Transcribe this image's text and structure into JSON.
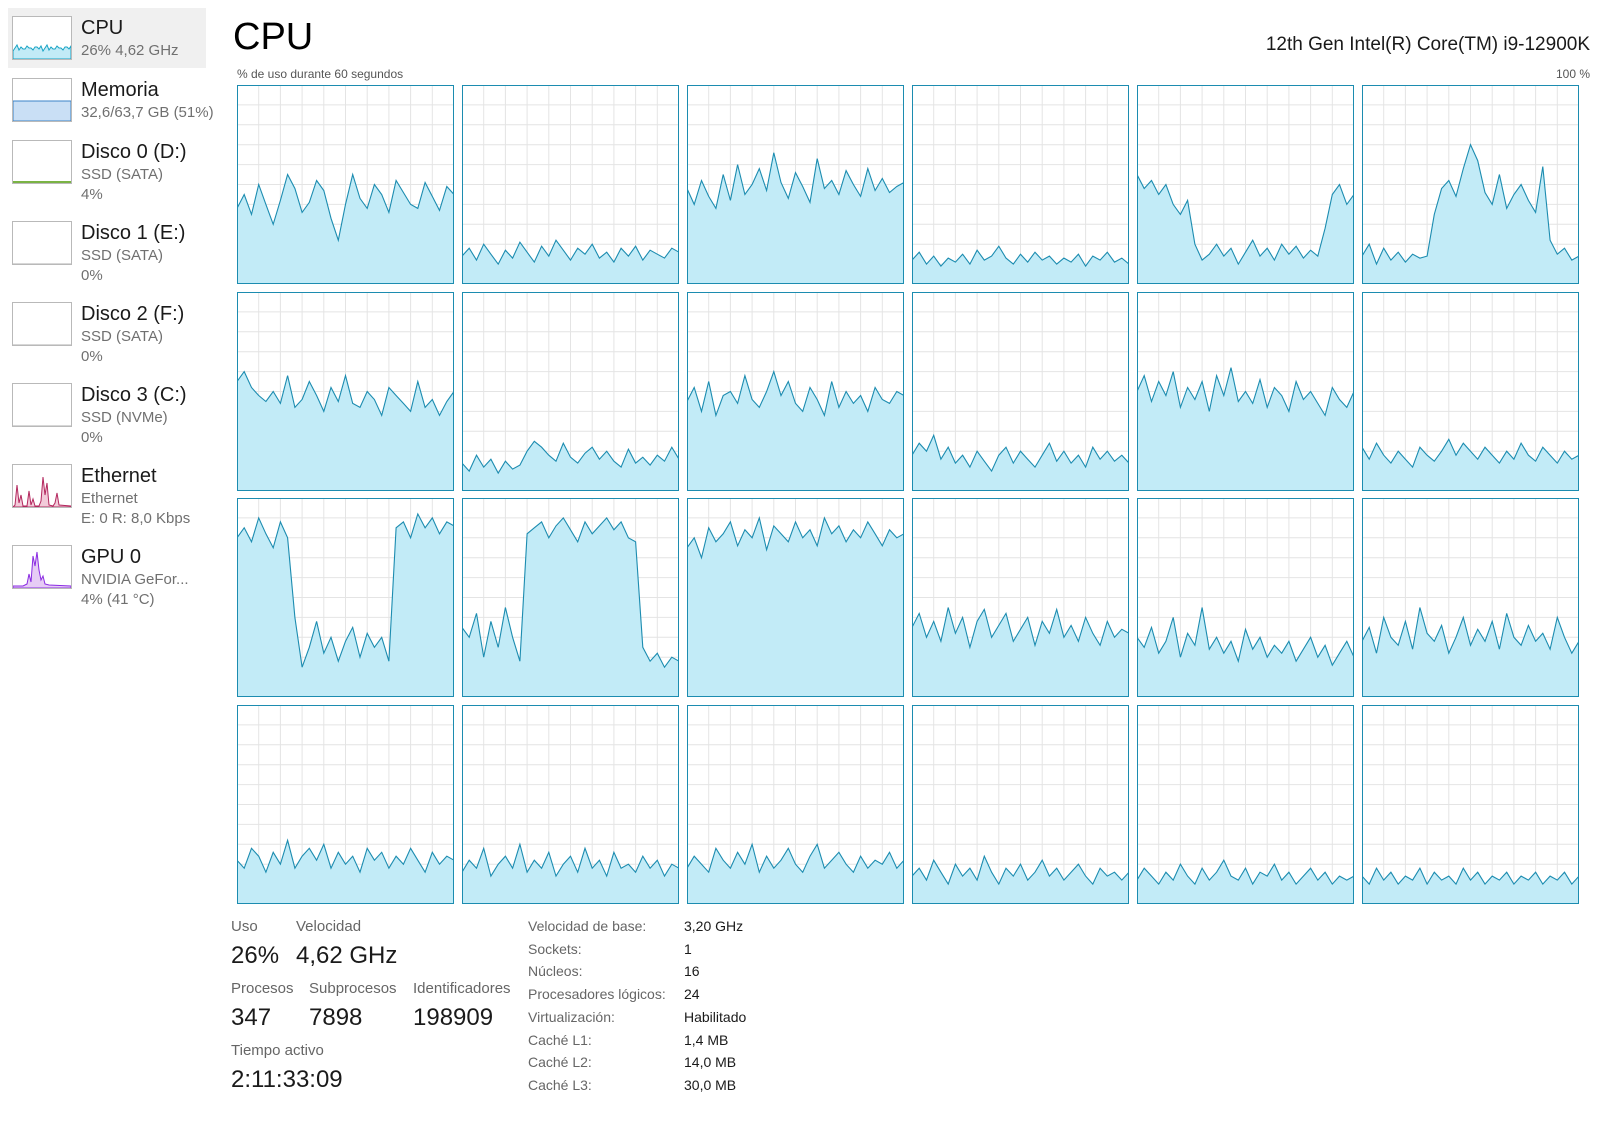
{
  "sidebar": {
    "items": [
      {
        "title": "CPU",
        "sub1": "26% 4,62 GHz",
        "sub2": "",
        "icon": "cpu-graph-icon",
        "color": "#17a3c4"
      },
      {
        "title": "Memoria",
        "sub1": "32,6/63,7 GB (51%)",
        "sub2": "",
        "icon": "memory-graph-icon",
        "color": "#3a83c8"
      },
      {
        "title": "Disco 0 (D:)",
        "sub1": "SSD (SATA)",
        "sub2": "4%",
        "icon": "disk-graph-icon",
        "color": "#4e9a06"
      },
      {
        "title": "Disco 1 (E:)",
        "sub1": "SSD (SATA)",
        "sub2": "0%",
        "icon": "disk-graph-icon",
        "color": "#4e9a06"
      },
      {
        "title": "Disco 2 (F:)",
        "sub1": "SSD (SATA)",
        "sub2": "0%",
        "icon": "disk-graph-icon",
        "color": "#4e9a06"
      },
      {
        "title": "Disco 3 (C:)",
        "sub1": "SSD (NVMe)",
        "sub2": "0%",
        "icon": "disk-graph-icon",
        "color": "#4e9a06"
      },
      {
        "title": "Ethernet",
        "sub1": "Ethernet",
        "sub2": "E: 0 R: 8,0 Kbps",
        "icon": "network-graph-icon",
        "color": "#b3285e"
      },
      {
        "title": "GPU 0",
        "sub1": "NVIDIA GeFor...",
        "sub2": "4% (41 °C)",
        "icon": "gpu-graph-icon",
        "color": "#8a2be2"
      }
    ]
  },
  "header": {
    "title": "CPU",
    "model": "12th Gen Intel(R) Core(TM) i9-12900K",
    "caption": "% de uso durante 60 segundos",
    "max": "100 %"
  },
  "colors": {
    "accent": "#1c8cb0",
    "fill": "#c2ebf7",
    "border": "#1c8cb0",
    "grid": "#e4e4e4"
  },
  "stats": {
    "uso_label": "Uso",
    "uso": "26%",
    "velocidad_label": "Velocidad",
    "velocidad": "4,62 GHz",
    "procesos_label": "Procesos",
    "procesos": "347",
    "subprocesos_label": "Subprocesos",
    "subprocesos": "7898",
    "identificadores_label": "Identificadores",
    "identificadores": "198909",
    "tiempo_label": "Tiempo activo",
    "tiempo": "2:11:33:09"
  },
  "specs": [
    {
      "label": "Velocidad de base:",
      "value": "3,20 GHz"
    },
    {
      "label": "Sockets:",
      "value": "1"
    },
    {
      "label": "Núcleos:",
      "value": "16"
    },
    {
      "label": "Procesadores lógicos:",
      "value": "24"
    },
    {
      "label": "Virtualización:",
      "value": "Habilitado"
    },
    {
      "label": "Caché L1:",
      "value": "1,4 MB"
    },
    {
      "label": "Caché L2:",
      "value": "14,0 MB"
    },
    {
      "label": "Caché L3:",
      "value": "30,0 MB"
    }
  ],
  "chart_data": {
    "type": "area",
    "rows": 4,
    "cols": 6,
    "ylim": [
      0,
      100
    ],
    "x_window_seconds": 60,
    "cores": [
      {
        "usage": [
          38,
          45,
          35,
          50,
          40,
          30,
          42,
          55,
          48,
          36,
          41,
          52,
          47,
          33,
          22,
          40,
          55,
          43,
          38,
          50,
          45,
          36,
          52,
          46,
          40,
          38,
          51,
          44,
          37,
          49,
          45
        ]
      },
      {
        "usage": [
          14,
          18,
          12,
          20,
          15,
          10,
          17,
          13,
          21,
          16,
          11,
          19,
          14,
          22,
          17,
          12,
          18,
          15,
          20,
          13,
          16,
          11,
          18,
          14,
          19,
          12,
          17,
          15,
          13,
          18,
          16
        ]
      },
      {
        "usage": [
          48,
          40,
          52,
          44,
          38,
          55,
          42,
          60,
          45,
          50,
          58,
          47,
          66,
          51,
          43,
          56,
          49,
          41,
          63,
          48,
          52,
          45,
          57,
          50,
          44,
          58,
          47,
          53,
          46,
          49,
          51
        ]
      },
      {
        "usage": [
          12,
          16,
          10,
          14,
          9,
          13,
          11,
          15,
          10,
          17,
          12,
          14,
          19,
          13,
          10,
          15,
          11,
          16,
          12,
          14,
          10,
          13,
          11,
          15,
          9,
          14,
          12,
          16,
          11,
          13,
          10
        ]
      },
      {
        "usage": [
          55,
          48,
          52,
          45,
          50,
          40,
          35,
          42,
          20,
          12,
          15,
          20,
          14,
          18,
          10,
          16,
          22,
          14,
          18,
          12,
          20,
          15,
          19,
          13,
          17,
          14,
          28,
          45,
          50,
          40,
          45
        ]
      },
      {
        "usage": [
          14,
          20,
          10,
          18,
          12,
          16,
          11,
          15,
          13,
          14,
          35,
          48,
          52,
          44,
          58,
          70,
          62,
          46,
          40,
          55,
          38,
          45,
          50,
          42,
          36,
          59,
          22,
          15,
          18,
          12,
          14
        ]
      },
      {
        "usage": [
          55,
          60,
          52,
          48,
          45,
          50,
          44,
          58,
          42,
          46,
          55,
          48,
          40,
          52,
          45,
          58,
          44,
          42,
          50,
          46,
          38,
          52,
          48,
          44,
          40,
          55,
          42,
          46,
          38,
          45,
          50
        ]
      },
      {
        "usage": [
          14,
          10,
          18,
          12,
          16,
          9,
          15,
          11,
          13,
          20,
          25,
          22,
          18,
          15,
          24,
          17,
          14,
          19,
          22,
          16,
          20,
          15,
          12,
          21,
          14,
          17,
          13,
          18,
          15,
          22,
          16
        ]
      },
      {
        "usage": [
          45,
          52,
          40,
          55,
          38,
          48,
          50,
          44,
          58,
          46,
          42,
          50,
          60,
          48,
          55,
          44,
          40,
          52,
          46,
          38,
          55,
          42,
          50,
          44,
          48,
          40,
          52,
          46,
          44,
          50,
          48
        ]
      },
      {
        "usage": [
          18,
          24,
          20,
          28,
          16,
          22,
          14,
          18,
          12,
          20,
          15,
          10,
          18,
          22,
          14,
          20,
          16,
          12,
          18,
          24,
          15,
          20,
          14,
          18,
          12,
          22,
          16,
          20,
          15,
          18,
          14
        ]
      },
      {
        "usage": [
          50,
          58,
          45,
          55,
          48,
          60,
          42,
          52,
          46,
          55,
          40,
          58,
          48,
          62,
          45,
          50,
          44,
          56,
          42,
          52,
          48,
          40,
          55,
          46,
          50,
          44,
          38,
          52,
          46,
          42,
          50
        ]
      },
      {
        "usage": [
          22,
          16,
          24,
          18,
          14,
          20,
          16,
          12,
          22,
          18,
          15,
          20,
          26,
          18,
          24,
          20,
          16,
          22,
          18,
          14,
          20,
          16,
          24,
          18,
          15,
          22,
          18,
          14,
          20,
          16,
          18
        ]
      },
      {
        "usage": [
          80,
          85,
          78,
          90,
          82,
          75,
          88,
          80,
          40,
          15,
          25,
          38,
          22,
          30,
          18,
          28,
          35,
          20,
          32,
          25,
          30,
          18,
          85,
          88,
          80,
          92,
          85,
          90,
          82,
          88,
          86
        ]
      },
      {
        "usage": [
          35,
          30,
          42,
          20,
          38,
          25,
          45,
          30,
          18,
          82,
          85,
          88,
          80,
          86,
          90,
          84,
          78,
          88,
          82,
          86,
          90,
          84,
          88,
          80,
          78,
          25,
          18,
          22,
          15,
          20,
          18
        ]
      },
      {
        "usage": [
          75,
          80,
          70,
          85,
          78,
          82,
          88,
          76,
          84,
          80,
          90,
          74,
          86,
          82,
          78,
          88,
          80,
          84,
          76,
          90,
          82,
          86,
          78,
          84,
          80,
          88,
          82,
          76,
          84,
          80,
          82
        ]
      },
      {
        "usage": [
          35,
          42,
          30,
          38,
          28,
          45,
          32,
          40,
          25,
          38,
          44,
          30,
          36,
          42,
          28,
          34,
          40,
          26,
          38,
          32,
          44,
          30,
          36,
          28,
          40,
          32,
          26,
          38,
          30,
          34,
          32
        ]
      },
      {
        "usage": [
          30,
          25,
          35,
          22,
          28,
          40,
          20,
          32,
          26,
          45,
          24,
          30,
          22,
          28,
          18,
          34,
          24,
          30,
          20,
          26,
          22,
          28,
          18,
          24,
          30,
          20,
          26,
          16,
          22,
          28,
          20
        ]
      },
      {
        "usage": [
          28,
          35,
          22,
          40,
          30,
          26,
          38,
          24,
          45,
          32,
          28,
          36,
          22,
          30,
          40,
          26,
          34,
          28,
          38,
          24,
          42,
          30,
          26,
          36,
          28,
          32,
          24,
          40,
          30,
          22,
          28
        ]
      },
      {
        "usage": [
          22,
          18,
          28,
          24,
          16,
          26,
          20,
          32,
          18,
          24,
          28,
          22,
          30,
          18,
          26,
          20,
          24,
          16,
          28,
          22,
          26,
          18,
          24,
          20,
          28,
          22,
          16,
          26,
          20,
          24,
          22
        ]
      },
      {
        "usage": [
          16,
          22,
          18,
          28,
          14,
          20,
          24,
          18,
          30,
          16,
          22,
          18,
          26,
          14,
          20,
          24,
          16,
          28,
          18,
          22,
          14,
          26,
          18,
          20,
          16,
          24,
          18,
          22,
          14,
          20,
          18
        ]
      },
      {
        "usage": [
          18,
          24,
          20,
          16,
          28,
          22,
          18,
          26,
          20,
          30,
          16,
          24,
          18,
          22,
          28,
          20,
          16,
          24,
          30,
          18,
          22,
          26,
          20,
          16,
          24,
          18,
          22,
          20,
          26,
          18,
          22
        ]
      },
      {
        "usage": [
          14,
          18,
          12,
          22,
          16,
          10,
          20,
          14,
          18,
          12,
          24,
          16,
          10,
          18,
          14,
          20,
          12,
          16,
          22,
          14,
          18,
          12,
          16,
          20,
          14,
          10,
          18,
          14,
          16,
          12,
          16
        ]
      },
      {
        "usage": [
          12,
          18,
          14,
          10,
          16,
          12,
          20,
          14,
          10,
          18,
          12,
          16,
          22,
          14,
          12,
          18,
          10,
          16,
          14,
          20,
          12,
          16,
          10,
          14,
          18,
          12,
          16,
          10,
          14,
          12,
          14
        ]
      },
      {
        "usage": [
          14,
          10,
          18,
          12,
          16,
          10,
          14,
          12,
          18,
          10,
          16,
          12,
          14,
          10,
          18,
          12,
          16,
          10,
          14,
          12,
          16,
          10,
          14,
          12,
          16,
          10,
          14,
          12,
          16,
          10,
          14
        ]
      }
    ]
  }
}
